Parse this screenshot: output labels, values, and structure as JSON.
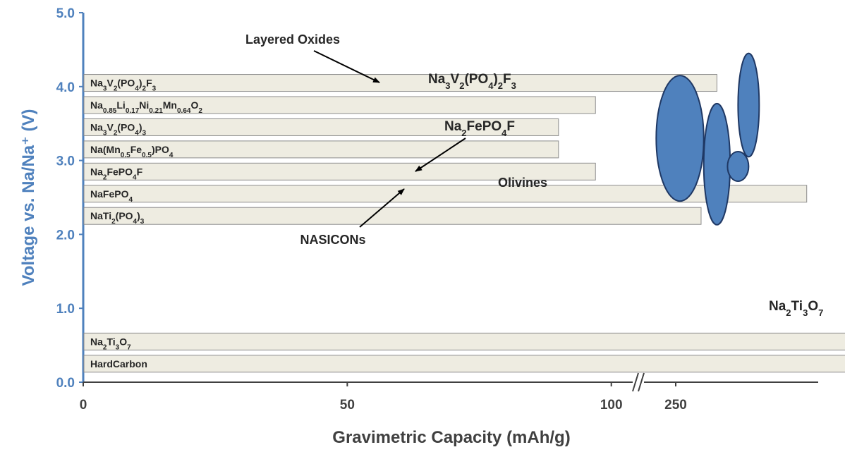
{
  "chart_data": {
    "type": "bar",
    "orientation": "horizontal-range",
    "xlabel": "Gravimetric Capacity (mAh/g)",
    "ylabel": "Voltage vs. Na/Na⁺ (V)",
    "ylim": [
      0,
      5
    ],
    "yticks": [
      "0.0",
      "1.0",
      "2.0",
      "3.0",
      "4.0",
      "5.0"
    ],
    "xticks": [
      "0",
      "50",
      "100",
      "150",
      "200",
      "250",
      "300"
    ],
    "x_axis_break": [
      210,
      225
    ],
    "bars": [
      {
        "label": "Na3V2(PO4)2F3",
        "capacity": 120,
        "y": 4.05
      },
      {
        "label": "Na0.85Li0.17Ni0.21Mn0.64O2",
        "capacity": 97,
        "y": 3.75
      },
      {
        "label": "Na3V2(PO4)3",
        "capacity": 90,
        "y": 3.45
      },
      {
        "label": "Na(Mn0.5Fe0.5)PO4",
        "capacity": 90,
        "y": 3.15
      },
      {
        "label": "Na2FePO4F",
        "capacity": 97,
        "y": 2.85
      },
      {
        "label": "NaFePO4",
        "capacity": 137,
        "y": 2.55
      },
      {
        "label": "NaTi2(PO4)3",
        "capacity": 117,
        "y": 2.25
      },
      {
        "label": "Na2Ti3O7",
        "capacity": 200,
        "y": 0.55
      },
      {
        "label": "Hard Carbon",
        "capacity": 300,
        "y": 0.25
      }
    ],
    "regions": [
      {
        "name": "Layered Oxides",
        "capacity_center": 113,
        "voltage_center": 3.3,
        "capacity_halfwidth": 4.5,
        "voltage_halfheight": 0.85
      },
      {
        "name": "NASICONs",
        "capacity_center": 120,
        "voltage_center": 2.95,
        "capacity_halfwidth": 2.5,
        "voltage_halfheight": 0.82
      },
      {
        "name": "Na3V2(PO4)2F3",
        "capacity_center": 126,
        "voltage_center": 3.75,
        "capacity_halfwidth": 2,
        "voltage_halfheight": 0.7
      },
      {
        "name": "Na2FePO4F",
        "capacity_center": 124,
        "voltage_center": 2.92,
        "capacity_halfwidth": 2,
        "voltage_halfheight": 0.2
      },
      {
        "name": "Olivines",
        "capacity_center": 153,
        "voltage_center": 2.65,
        "capacity_halfwidth": 1.5,
        "voltage_halfheight": 0.55
      },
      {
        "name": "Na2Ti3O7",
        "capacity_center": 300,
        "voltage_center": 0.5,
        "capacity_halfwidth": 3,
        "voltage_halfheight": 0.3
      }
    ],
    "annotations": [
      "Layered Oxides",
      "NASICONs",
      "Olivines",
      "Na3V2(PO4)2F3",
      "Na2FePO4F",
      "Na2Ti3O7"
    ],
    "colors": {
      "bar_fill": "#eeece1",
      "region_fill": "#4f81bd",
      "y_axis": "#4f81bd"
    }
  }
}
